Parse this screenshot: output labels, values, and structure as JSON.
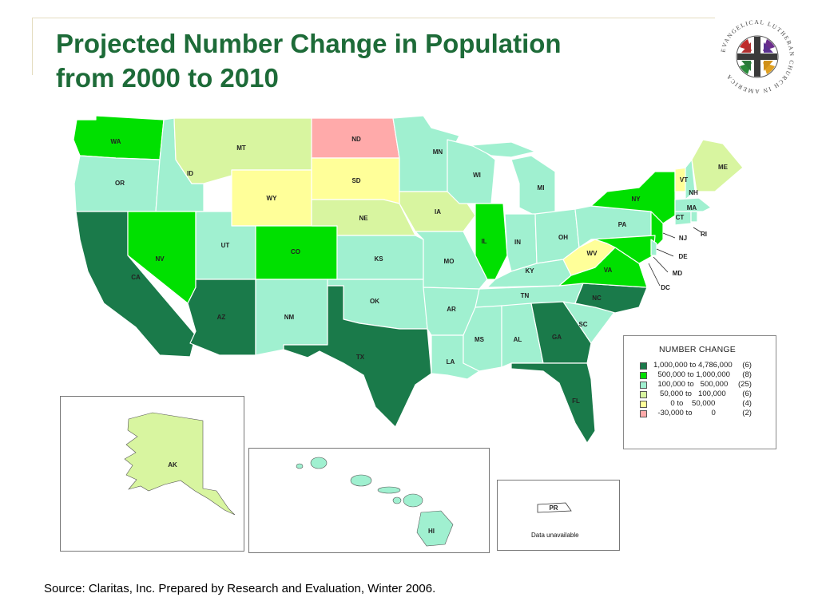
{
  "title": {
    "line1": "Projected Number Change in Population",
    "line2": "from 2000 to 2010"
  },
  "logo": {
    "arc_text": "EVANGELICAL LUTHERAN CHURCH IN AMERICA"
  },
  "legend": {
    "title": "NUMBER CHANGE",
    "items": [
      {
        "range": "1,000,000 to 4,786,000",
        "count": "(6)",
        "color": "#1a7a4a"
      },
      {
        "range": "  500,000 to 1,000,000",
        "count": "(8)",
        "color": "#00e000"
      },
      {
        "range": "  100,000 to   500,000",
        "count": "(25)",
        "color": "#a0f0d0"
      },
      {
        "range": "   50,000 to   100,000",
        "count": "(6)",
        "color": "#d8f5a0"
      },
      {
        "range": "        0 to    50,000",
        "count": "(4)",
        "color": "#ffff99"
      },
      {
        "range": "  -30,000 to         0",
        "count": "(2)",
        "color": "#ffaaaa"
      }
    ]
  },
  "states": {
    "WA": "WA",
    "OR": "OR",
    "CA": "CA",
    "ID": "ID",
    "NV": "NV",
    "MT": "MT",
    "WY": "WY",
    "UT": "UT",
    "AZ": "AZ",
    "CO": "CO",
    "NM": "NM",
    "ND": "ND",
    "SD": "SD",
    "NE": "NE",
    "KS": "KS",
    "OK": "OK",
    "TX": "TX",
    "MN": "MN",
    "IA": "IA",
    "MO": "MO",
    "AR": "AR",
    "LA": "LA",
    "WI": "WI",
    "IL": "IL",
    "MI": "MI",
    "IN": "IN",
    "OH": "OH",
    "KY": "KY",
    "TN": "TN",
    "MS": "MS",
    "AL": "AL",
    "GA": "GA",
    "FL": "FL",
    "SC": "SC",
    "NC": "NC",
    "VA": "VA",
    "WV": "WV",
    "PA": "PA",
    "NY": "NY",
    "VT": "VT",
    "NH": "NH",
    "ME": "ME",
    "MA": "MA",
    "CT": "CT",
    "RI": "RI",
    "NJ": "NJ",
    "DE": "DE",
    "MD": "MD",
    "DC": "DC",
    "AK": "AK",
    "HI": "HI",
    "PR": "PR"
  },
  "pr_note": "Data unavailable",
  "source": "Source:  Claritas, Inc.  Prepared by Research and Evaluation, Winter 2006.",
  "colors": {
    "dark_green": "#1a7a4a",
    "bright_green": "#00e000",
    "aqua": "#a0f0d0",
    "light_lime": "#d8f5a0",
    "light_yellow": "#ffff99",
    "pink": "#ffaaaa",
    "title_green": "#1d6b38"
  }
}
